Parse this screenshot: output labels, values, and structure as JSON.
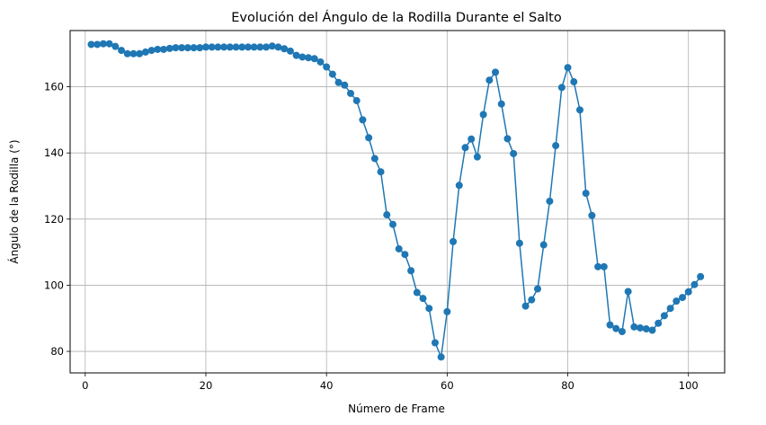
{
  "chart_data": {
    "type": "line",
    "title": "Evolución del Ángulo de la Rodilla Durante el Salto",
    "xlabel": "Número de Frame",
    "ylabel": "Ángulo de la Rodilla (°)",
    "xlim": [
      -2.5,
      106
    ],
    "ylim": [
      73.5,
      177
    ],
    "xticks": [
      0,
      20,
      40,
      60,
      80,
      100
    ],
    "yticks": [
      80,
      100,
      120,
      140,
      160
    ],
    "grid": true,
    "marker": "circle",
    "color": "#1f77b4",
    "series": [
      {
        "x": [
          1,
          2,
          3,
          4,
          5,
          6,
          7,
          8,
          9,
          10,
          11,
          12,
          13,
          14,
          15,
          16,
          17,
          18,
          19,
          20,
          21,
          22,
          23,
          24,
          25,
          26,
          27,
          28,
          29,
          30,
          31,
          32,
          33,
          34,
          35,
          36,
          37,
          38,
          39,
          40,
          41,
          42,
          43,
          44,
          45,
          46,
          47,
          48,
          49,
          50,
          51,
          52,
          53,
          54,
          55,
          56,
          57,
          58,
          59,
          60,
          61,
          62,
          63,
          64,
          65,
          66,
          67,
          68,
          69,
          70,
          71,
          72,
          73,
          74,
          75,
          76,
          77,
          78,
          79,
          80,
          81,
          82,
          83,
          84,
          85,
          86,
          87,
          88,
          89,
          90,
          91,
          92,
          93,
          94,
          95,
          96,
          97,
          98,
          99,
          100,
          101,
          102
        ],
        "y": [
          172.8,
          172.8,
          173.0,
          173.0,
          172.2,
          171.0,
          170.0,
          170.0,
          170.0,
          170.5,
          171.0,
          171.3,
          171.3,
          171.6,
          171.8,
          171.8,
          171.8,
          171.8,
          171.8,
          172.0,
          172.0,
          172.0,
          172.0,
          172.0,
          172.0,
          172.0,
          172.0,
          172.0,
          172.0,
          172.0,
          172.3,
          172.0,
          171.5,
          170.8,
          169.5,
          169.0,
          168.8,
          168.5,
          167.5,
          166.0,
          163.8,
          161.3,
          160.5,
          158.0,
          155.8,
          150.0,
          144.6,
          138.3,
          134.3,
          121.3,
          118.4,
          111.0,
          109.3,
          104.4,
          97.8,
          96.0,
          93.0,
          82.6,
          78.3,
          92.0,
          113.2,
          130.2,
          141.6,
          144.2,
          138.8,
          151.6,
          162.0,
          164.4,
          154.8,
          144.3,
          139.8,
          112.7,
          93.7,
          95.6,
          98.9,
          112.2,
          125.4,
          142.2,
          159.8,
          165.8,
          161.5,
          153.0,
          127.8,
          121.1,
          105.6,
          105.6,
          88.0,
          86.9,
          86.0,
          98.1,
          87.4,
          87.1,
          86.8,
          86.4,
          88.5,
          90.8,
          93.0,
          95.2,
          96.3,
          98.0,
          100.2,
          102.6
        ]
      }
    ]
  }
}
